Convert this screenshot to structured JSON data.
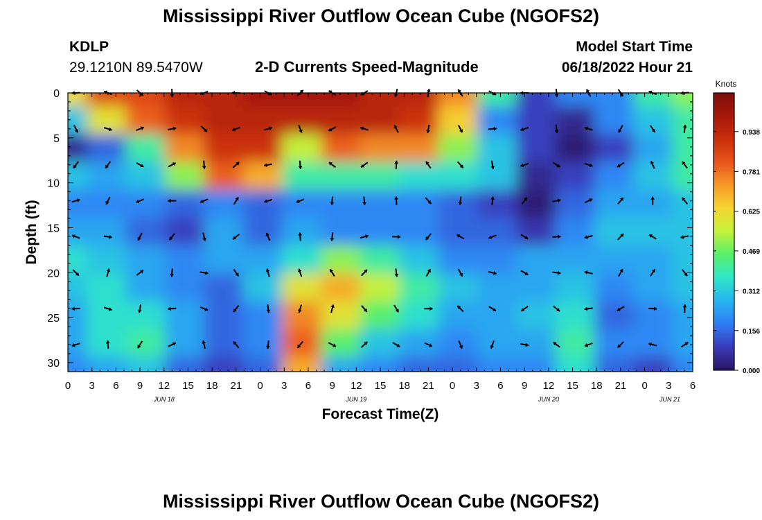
{
  "header": {
    "title": "Mississippi River Outflow Ocean Cube (NGOFS2)",
    "station_id": "KDLP",
    "station_coords": "29.1210N  89.5470W",
    "subtitle": "2-D Currents Speed-Magnitude",
    "model_start_label": "Model Start Time",
    "model_start_value": "06/18/2022 Hour 21"
  },
  "footer": {
    "title": "Mississippi River Outflow Ocean Cube (NGOFS2)"
  },
  "chart_data": {
    "type": "heatmap",
    "xlabel": "Forecast Time(Z)",
    "ylabel": "Depth (ft)",
    "x_tick_labels": [
      "0",
      "3",
      "6",
      "9",
      "12",
      "15",
      "18",
      "21",
      "0",
      "3",
      "6",
      "9",
      "12",
      "15",
      "18",
      "21",
      "0",
      "3",
      "6",
      "9",
      "12",
      "15",
      "18",
      "21",
      "0",
      "3",
      "6"
    ],
    "date_labels": [
      "JUN 18",
      "JUN 19",
      "JUN 20",
      "JUN 21"
    ],
    "xlim_hours": [
      0,
      78
    ],
    "y_tick_labels": [
      "0",
      "5",
      "10",
      "15",
      "20",
      "25",
      "30"
    ],
    "ylim": [
      0,
      31
    ],
    "colorbar": {
      "unit": "Knots",
      "tick_labels": [
        "0.938",
        "0.781",
        "0.625",
        "0.469",
        "0.312",
        "0.156",
        "0.000"
      ],
      "range": [
        0,
        1.09
      ],
      "colors": [
        "#2a1660",
        "#3a3ab8",
        "#2f7df5",
        "#27b4ee",
        "#2fe6c9",
        "#57ef6a",
        "#c2f23c",
        "#f6d632",
        "#f69a28",
        "#e8541c",
        "#c9300d",
        "#a51808",
        "#7c0e0b"
      ]
    },
    "speed_grid_knots": [
      [
        0.62,
        0.85,
        0.85,
        0.95,
        0.95,
        1.0,
        1.0,
        1.0,
        0.95,
        0.95,
        0.75,
        0.4,
        0.1,
        0.2,
        0.2,
        0.4,
        0.5
      ],
      [
        0.3,
        0.6,
        0.8,
        0.9,
        0.95,
        0.95,
        0.95,
        0.95,
        0.95,
        0.9,
        0.65,
        0.2,
        0.1,
        0.05,
        0.2,
        0.3,
        0.4
      ],
      [
        0.05,
        0.15,
        0.4,
        0.75,
        0.9,
        0.9,
        0.55,
        0.8,
        0.75,
        0.75,
        0.5,
        0.3,
        0.1,
        0.02,
        0.1,
        0.25,
        0.4
      ],
      [
        0.3,
        0.25,
        0.3,
        0.5,
        0.8,
        0.7,
        0.4,
        0.4,
        0.4,
        0.35,
        0.35,
        0.3,
        0.05,
        0.1,
        0.2,
        0.3,
        0.4
      ],
      [
        0.2,
        0.2,
        0.2,
        0.15,
        0.2,
        0.15,
        0.2,
        0.2,
        0.2,
        0.2,
        0.15,
        0.1,
        0.02,
        0.15,
        0.25,
        0.25,
        0.3
      ],
      [
        0.25,
        0.25,
        0.15,
        0.1,
        0.25,
        0.15,
        0.25,
        0.2,
        0.2,
        0.2,
        0.15,
        0.15,
        0.08,
        0.2,
        0.3,
        0.3,
        0.3
      ],
      [
        0.35,
        0.3,
        0.25,
        0.2,
        0.25,
        0.25,
        0.35,
        0.5,
        0.4,
        0.3,
        0.2,
        0.2,
        0.25,
        0.25,
        0.25,
        0.25,
        0.3
      ],
      [
        0.3,
        0.35,
        0.25,
        0.2,
        0.15,
        0.3,
        0.6,
        0.7,
        0.55,
        0.4,
        0.3,
        0.25,
        0.25,
        0.3,
        0.2,
        0.25,
        0.3
      ],
      [
        0.25,
        0.35,
        0.35,
        0.25,
        0.15,
        0.2,
        0.75,
        0.6,
        0.45,
        0.35,
        0.25,
        0.25,
        0.3,
        0.35,
        0.15,
        0.2,
        0.25
      ],
      [
        0.25,
        0.35,
        0.4,
        0.25,
        0.15,
        0.2,
        0.8,
        0.45,
        0.3,
        0.25,
        0.2,
        0.25,
        0.25,
        0.4,
        0.2,
        0.2,
        0.25
      ],
      [
        0.2,
        0.25,
        0.3,
        0.15,
        0.1,
        0.15,
        0.7,
        0.25,
        0.2,
        0.15,
        0.15,
        0.2,
        0.2,
        0.35,
        0.15,
        0.1,
        0.2
      ]
    ]
  }
}
